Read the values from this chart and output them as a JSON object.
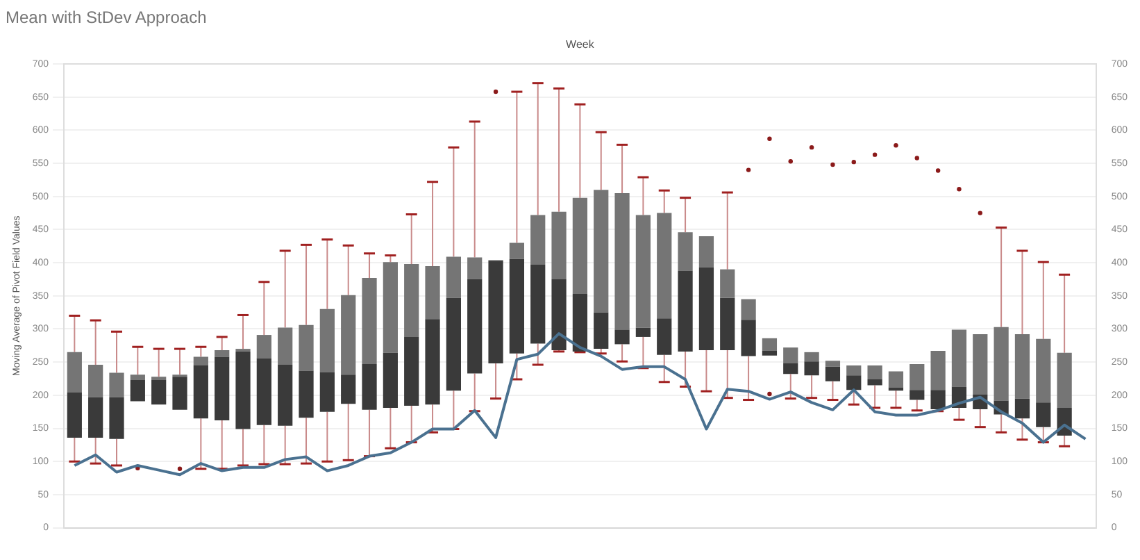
{
  "chart_data": {
    "type": "box",
    "title": "Mean with StDev Approach",
    "xlabel": "Week",
    "ylabel": "Moving Average of Pivot Field Values",
    "categories": [
      null,
      null,
      null,
      null,
      null,
      null,
      null,
      null,
      null,
      null,
      null,
      null,
      null,
      null,
      null,
      null,
      null,
      null,
      null,
      null,
      null,
      null,
      null,
      null,
      null,
      null,
      null,
      null,
      null,
      null,
      null,
      null,
      null,
      null,
      null,
      null,
      null,
      null,
      null,
      null,
      null,
      null,
      null,
      null,
      null,
      null,
      null,
      null,
      null
    ],
    "ylim": [
      0,
      700
    ],
    "yticks": [
      0,
      50,
      100,
      150,
      200,
      250,
      300,
      350,
      400,
      450,
      500,
      550,
      600,
      650,
      700
    ],
    "y2lim": [
      0,
      700
    ],
    "y2ticks": [
      0,
      50,
      100,
      150,
      200,
      250,
      300,
      350,
      400,
      450,
      500,
      550,
      600,
      650,
      700
    ],
    "grid": "y",
    "legend": false,
    "series": [
      {
        "type": "box",
        "color": "#3a3a3a",
        "boxes": [
          {
            "low": 100,
            "q1": 136,
            "median": 204,
            "q3": 265,
            "high": 320
          },
          {
            "low": 97,
            "q1": 136,
            "median": 197,
            "q3": 246,
            "high": 313
          },
          {
            "low": 94,
            "q1": 134,
            "median": 197,
            "q3": 234,
            "high": 296
          },
          {
            "low": 191,
            "q1": 191,
            "median": 223,
            "q3": 231,
            "high": 273,
            "outliers": [
              90
            ]
          },
          {
            "low": 186,
            "q1": 186,
            "median": 223,
            "q3": 228,
            "high": 270
          },
          {
            "low": 178,
            "q1": 178,
            "median": 228,
            "q3": 231,
            "high": 270,
            "outliers": [
              89
            ]
          },
          {
            "low": 89,
            "q1": 165,
            "median": 245,
            "q3": 258,
            "high": 273
          },
          {
            "low": 89,
            "q1": 162,
            "median": 258,
            "q3": 268,
            "high": 288
          },
          {
            "low": 94,
            "q1": 149,
            "median": 266,
            "q3": 270,
            "high": 321
          },
          {
            "low": 96,
            "q1": 155,
            "median": 256,
            "q3": 291,
            "high": 371
          },
          {
            "low": 96,
            "q1": 154,
            "median": 246,
            "q3": 302,
            "high": 418
          },
          {
            "low": 97,
            "q1": 166,
            "median": 237,
            "q3": 306,
            "high": 427
          },
          {
            "low": 100,
            "q1": 175,
            "median": 235,
            "q3": 330,
            "high": 435
          },
          {
            "low": 102,
            "q1": 187,
            "median": 231,
            "q3": 351,
            "high": 426
          },
          {
            "low": 108,
            "q1": 178,
            "median": 247,
            "q3": 377,
            "high": 414
          },
          {
            "low": 120,
            "q1": 181,
            "median": 264,
            "q3": 401,
            "high": 411
          },
          {
            "low": 129,
            "q1": 184,
            "median": 288,
            "q3": 398,
            "high": 473
          },
          {
            "low": 144,
            "q1": 186,
            "median": 315,
            "q3": 395,
            "high": 522
          },
          {
            "low": 149,
            "q1": 207,
            "median": 347,
            "q3": 409,
            "high": 574
          },
          {
            "low": 176,
            "q1": 233,
            "median": 375,
            "q3": 408,
            "high": 613
          },
          {
            "low": 195,
            "q1": 248,
            "median": 403,
            "q3": 404,
            "high": 404,
            "outliers": [
              658
            ]
          },
          {
            "low": 224,
            "q1": 263,
            "median": 406,
            "q3": 430,
            "high": 658
          },
          {
            "low": 246,
            "q1": 278,
            "median": 397,
            "q3": 472,
            "high": 671
          },
          {
            "low": 266,
            "q1": 268,
            "median": 375,
            "q3": 477,
            "high": 663
          },
          {
            "low": 265,
            "q1": 266,
            "median": 353,
            "q3": 498,
            "high": 639
          },
          {
            "low": 263,
            "q1": 270,
            "median": 325,
            "q3": 510,
            "high": 597
          },
          {
            "low": 251,
            "q1": 277,
            "median": 299,
            "q3": 505,
            "high": 578
          },
          {
            "low": 241,
            "q1": 288,
            "median": 302,
            "q3": 472,
            "high": 529
          },
          {
            "low": 220,
            "q1": 261,
            "median": 316,
            "q3": 475,
            "high": 509
          },
          {
            "low": 213,
            "q1": 266,
            "median": 388,
            "q3": 446,
            "high": 498
          },
          {
            "low": 206,
            "q1": 268,
            "median": 393,
            "q3": 440,
            "high": 440
          },
          {
            "low": 196,
            "q1": 268,
            "median": 347,
            "q3": 390,
            "high": 506
          },
          {
            "low": 193,
            "q1": 259,
            "median": 314,
            "q3": 345,
            "high": 345,
            "outliers": [
              540
            ]
          },
          {
            "low": 260,
            "q1": 260,
            "median": 267,
            "q3": 286,
            "high": 286,
            "outliers": [
              202,
              587
            ]
          },
          {
            "low": 195,
            "q1": 232,
            "median": 248,
            "q3": 272,
            "high": 272,
            "outliers": [
              553
            ]
          },
          {
            "low": 196,
            "q1": 230,
            "median": 251,
            "q3": 265,
            "high": 265,
            "outliers": [
              574
            ]
          },
          {
            "low": 193,
            "q1": 221,
            "median": 243,
            "q3": 252,
            "high": 252,
            "outliers": [
              548
            ]
          },
          {
            "low": 186,
            "q1": 208,
            "median": 230,
            "q3": 245,
            "high": 245,
            "outliers": [
              552
            ]
          },
          {
            "low": 181,
            "q1": 215,
            "median": 224,
            "q3": 245,
            "high": 245,
            "outliers": [
              563
            ]
          },
          {
            "low": 181,
            "q1": 207,
            "median": 212,
            "q3": 236,
            "high": 236,
            "outliers": [
              577
            ]
          },
          {
            "low": 177,
            "q1": 193,
            "median": 208,
            "q3": 247,
            "high": 247,
            "outliers": [
              558
            ]
          },
          {
            "low": 176,
            "q1": 179,
            "median": 208,
            "q3": 267,
            "high": 267,
            "outliers": [
              539
            ]
          },
          {
            "low": 163,
            "q1": 181,
            "median": 213,
            "q3": 299,
            "high": 299,
            "outliers": [
              511
            ]
          },
          {
            "low": 152,
            "q1": 179,
            "median": 201,
            "q3": 292,
            "high": 292,
            "outliers": [
              475
            ]
          },
          {
            "low": 144,
            "q1": 171,
            "median": 192,
            "q3": 303,
            "high": 453
          },
          {
            "low": 133,
            "q1": 165,
            "median": 195,
            "q3": 292,
            "high": 418
          },
          {
            "low": 129,
            "q1": 152,
            "median": 189,
            "q3": 285,
            "high": 401
          },
          {
            "low": 123,
            "q1": 139,
            "median": 181,
            "q3": 264,
            "high": 382
          },
          null
        ]
      },
      {
        "type": "line",
        "color": "#4a7190",
        "values": [
          94,
          110,
          84,
          94,
          87,
          80,
          97,
          86,
          91,
          91,
          103,
          107,
          86,
          94,
          108,
          113,
          129,
          149,
          149,
          177,
          136,
          254,
          262,
          293,
          272,
          259,
          239,
          243,
          243,
          224,
          149,
          209,
          206,
          194,
          205,
          189,
          178,
          208,
          175,
          170,
          170,
          177,
          188,
          197,
          175,
          158,
          129,
          155,
          134
        ]
      }
    ]
  }
}
